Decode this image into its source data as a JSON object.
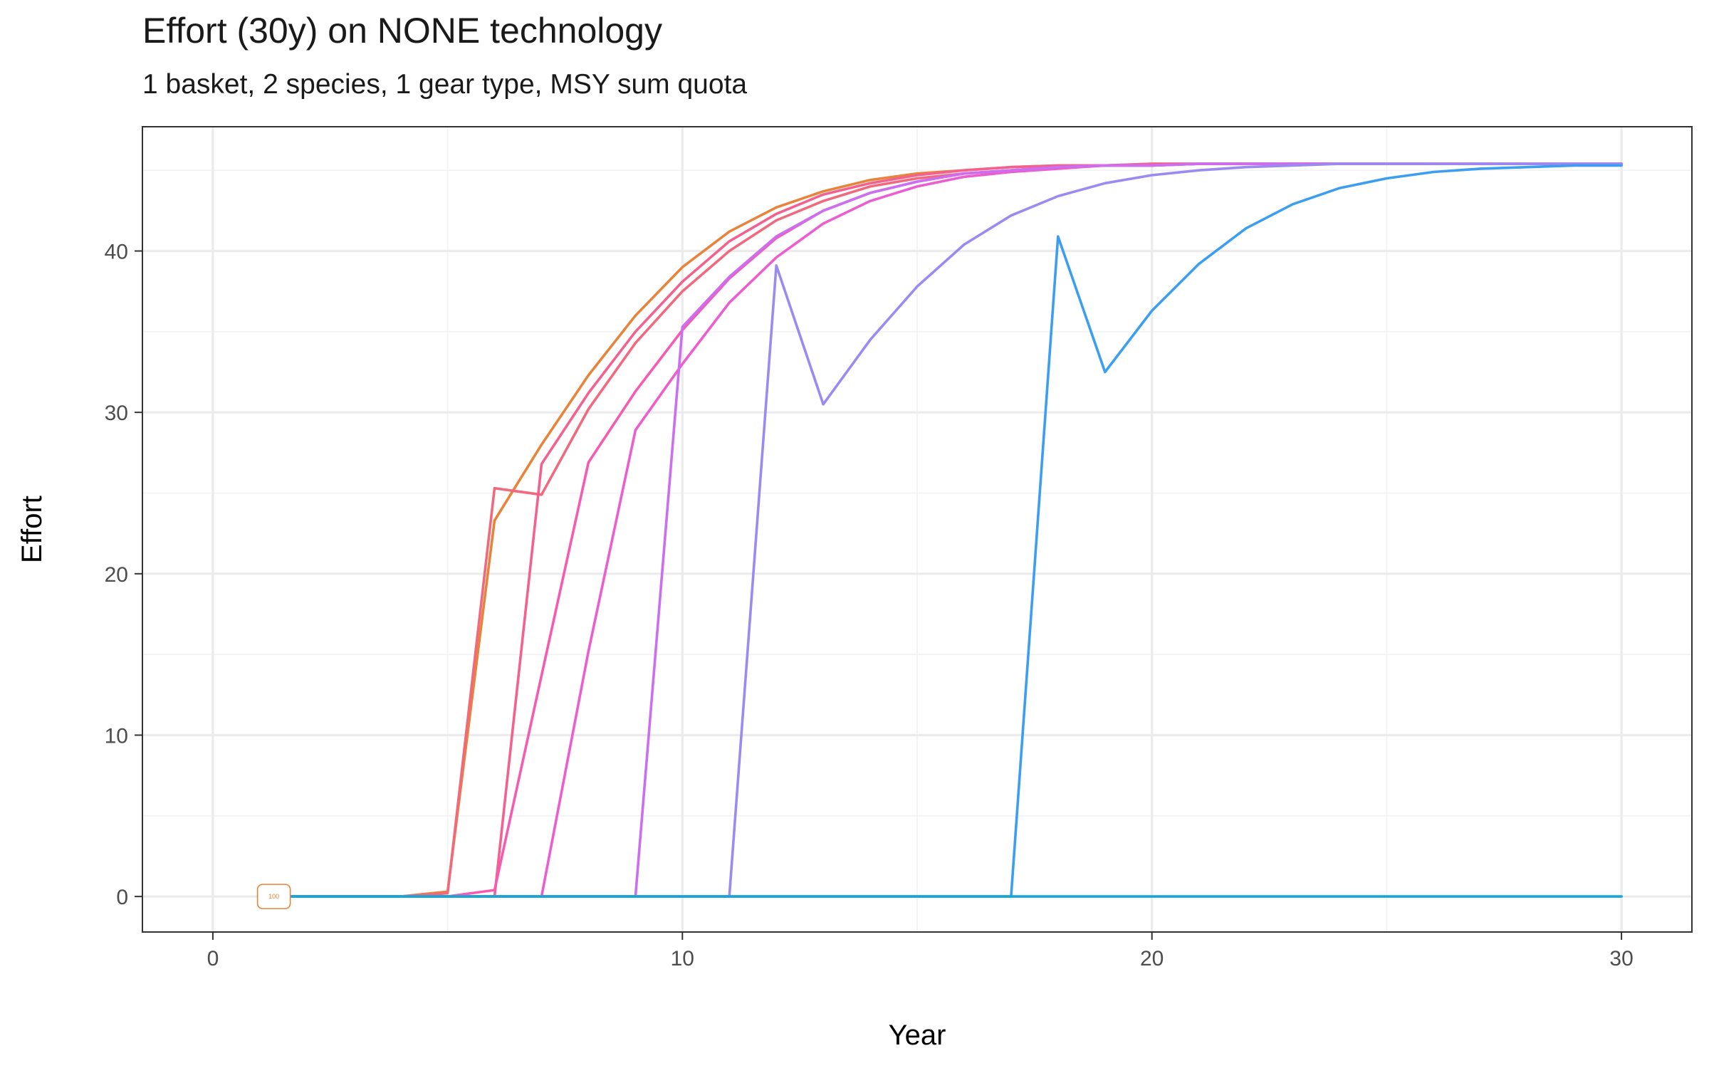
{
  "header": {
    "title": "Effort (30y) on NONE technology",
    "subtitle": "1 basket, 2 species, 1 gear type, MSY sum quota"
  },
  "chart_data": {
    "type": "line",
    "title": "Effort (30y) on NONE technology",
    "subtitle": "1 basket, 2 species, 1 gear type, MSY sum quota",
    "xlabel": "Year",
    "ylabel": "Effort",
    "xlim": [
      -1.5,
      31.5
    ],
    "ylim": [
      -2.2,
      47.7
    ],
    "x_ticks": [
      0,
      10,
      20,
      30
    ],
    "x_tick_labels": [
      "0",
      "10",
      "20",
      "30"
    ],
    "y_ticks": [
      0,
      10,
      20,
      30,
      40
    ],
    "y_tick_labels": [
      "0",
      "10",
      "20",
      "30",
      "40"
    ],
    "grid": true,
    "legend": "none",
    "annotation": {
      "text": "100",
      "x": 1.3,
      "y": 0,
      "color": "#e8833a"
    },
    "series": [
      {
        "color": "#e8833a",
        "x": [
          1,
          2,
          3,
          4,
          5,
          6,
          7,
          8,
          9,
          10,
          11,
          12,
          13,
          14,
          15,
          16,
          17,
          18,
          19,
          20,
          21,
          22,
          23,
          24,
          25,
          26,
          27,
          28,
          29,
          30
        ],
        "y": [
          0,
          0,
          0,
          0,
          0.3,
          23.3,
          28.0,
          32.3,
          36.0,
          39.0,
          41.2,
          42.7,
          43.7,
          44.4,
          44.8,
          45.0,
          45.2,
          45.3,
          45.3,
          45.4,
          45.4,
          45.4,
          45.4,
          45.4,
          45.4,
          45.4,
          45.4,
          45.4,
          45.4,
          45.4
        ]
      },
      {
        "color": "#f0697d",
        "x": [
          1,
          2,
          3,
          4,
          5,
          6,
          7,
          8,
          9,
          10,
          11,
          12,
          13,
          14,
          15,
          16,
          17,
          18,
          19,
          20,
          21,
          22,
          23,
          24,
          25,
          26,
          27,
          28,
          29,
          30
        ],
        "y": [
          0,
          0,
          0,
          0,
          0.2,
          25.3,
          24.9,
          30.2,
          34.3,
          37.5,
          40.0,
          41.9,
          43.1,
          44.0,
          44.5,
          44.8,
          45.0,
          45.2,
          45.3,
          45.3,
          45.4,
          45.4,
          45.4,
          45.4,
          45.4,
          45.4,
          45.4,
          45.4,
          45.4,
          45.4
        ]
      },
      {
        "color": "#f3618f",
        "x": [
          1,
          2,
          3,
          4,
          5,
          6,
          7,
          8,
          9,
          10,
          11,
          12,
          13,
          14,
          15,
          16,
          17,
          18,
          19,
          20,
          21,
          22,
          23,
          24,
          25,
          26,
          27,
          28,
          29,
          30
        ],
        "y": [
          0,
          0,
          0,
          0,
          0,
          0,
          26.8,
          31.2,
          35.0,
          38.1,
          40.6,
          42.3,
          43.5,
          44.2,
          44.7,
          45.0,
          45.2,
          45.3,
          45.3,
          45.4,
          45.4,
          45.4,
          45.4,
          45.4,
          45.4,
          45.4,
          45.4,
          45.4,
          45.4,
          45.4
        ]
      },
      {
        "color": "#f55bb0",
        "x": [
          1,
          2,
          3,
          4,
          5,
          6,
          7,
          8,
          9,
          10,
          11,
          12,
          13,
          14,
          15,
          16,
          17,
          18,
          19,
          20,
          21,
          22,
          23,
          24,
          25,
          26,
          27,
          28,
          29,
          30
        ],
        "y": [
          0,
          0,
          0,
          0,
          0,
          0.4,
          13.7,
          26.9,
          31.3,
          35.1,
          38.3,
          40.8,
          42.5,
          43.6,
          44.3,
          44.8,
          45.0,
          45.2,
          45.3,
          45.3,
          45.4,
          45.4,
          45.4,
          45.4,
          45.4,
          45.4,
          45.4,
          45.4,
          45.4,
          45.4
        ]
      },
      {
        "color": "#ec5ed0",
        "x": [
          1,
          2,
          3,
          4,
          5,
          6,
          7,
          8,
          9,
          10,
          11,
          12,
          13,
          14,
          15,
          16,
          17,
          18,
          19,
          20,
          21,
          22,
          23,
          24,
          25,
          26,
          27,
          28,
          29,
          30
        ],
        "y": [
          0,
          0,
          0,
          0,
          0,
          0,
          0,
          15.2,
          28.9,
          33.0,
          36.8,
          39.6,
          41.7,
          43.1,
          44.0,
          44.6,
          44.9,
          45.1,
          45.3,
          45.3,
          45.4,
          45.4,
          45.4,
          45.4,
          45.4,
          45.4,
          45.4,
          45.4,
          45.4,
          45.4
        ]
      },
      {
        "color": "#cc6ef0",
        "x": [
          1,
          2,
          3,
          4,
          5,
          6,
          7,
          8,
          9,
          10,
          11,
          12,
          13,
          14,
          15,
          16,
          17,
          18,
          19,
          20,
          21,
          22,
          23,
          24,
          25,
          26,
          27,
          28,
          29,
          30
        ],
        "y": [
          0,
          0,
          0,
          0,
          0,
          0,
          0,
          0,
          0,
          35.3,
          38.4,
          40.9,
          42.5,
          43.6,
          44.3,
          44.8,
          45.0,
          45.2,
          45.3,
          45.3,
          45.4,
          45.4,
          45.4,
          45.4,
          45.4,
          45.4,
          45.4,
          45.4,
          45.4,
          45.4
        ]
      },
      {
        "color": "#9b8af2",
        "x": [
          1,
          2,
          3,
          4,
          5,
          6,
          7,
          8,
          9,
          10,
          11,
          12,
          13,
          14,
          15,
          16,
          17,
          18,
          19,
          20,
          21,
          22,
          23,
          24,
          25,
          26,
          27,
          28,
          29,
          30
        ],
        "y": [
          0,
          0,
          0,
          0,
          0,
          0,
          0,
          0,
          0,
          0,
          0,
          39.1,
          30.5,
          34.5,
          37.8,
          40.4,
          42.2,
          43.4,
          44.2,
          44.7,
          45.0,
          45.2,
          45.3,
          45.4,
          45.4,
          45.4,
          45.4,
          45.4,
          45.4,
          45.4
        ]
      },
      {
        "color": "#3c9ef0",
        "x": [
          1,
          2,
          3,
          4,
          5,
          6,
          7,
          8,
          9,
          10,
          11,
          12,
          13,
          14,
          15,
          16,
          17,
          18,
          19,
          20,
          21,
          22,
          23,
          24,
          25,
          26,
          27,
          28,
          29,
          30
        ],
        "y": [
          0,
          0,
          0,
          0,
          0,
          0,
          0,
          0,
          0,
          0,
          0,
          0,
          0,
          0,
          0,
          0,
          0,
          40.9,
          32.5,
          36.3,
          39.2,
          41.4,
          42.9,
          43.9,
          44.5,
          44.9,
          45.1,
          45.2,
          45.3,
          45.3
        ]
      },
      {
        "color": "#17a6d6",
        "x": [
          1,
          2,
          3,
          4,
          5,
          6,
          7,
          8,
          9,
          10,
          11,
          12,
          13,
          14,
          15,
          16,
          17,
          18,
          19,
          20,
          21,
          22,
          23,
          24,
          25,
          26,
          27,
          28,
          29,
          30
        ],
        "y": [
          0,
          0,
          0,
          0,
          0,
          0,
          0,
          0,
          0,
          0,
          0,
          0,
          0,
          0,
          0,
          0,
          0,
          0,
          0,
          0,
          0,
          0,
          0,
          0,
          0,
          0,
          0,
          0,
          0,
          0
        ]
      }
    ]
  }
}
